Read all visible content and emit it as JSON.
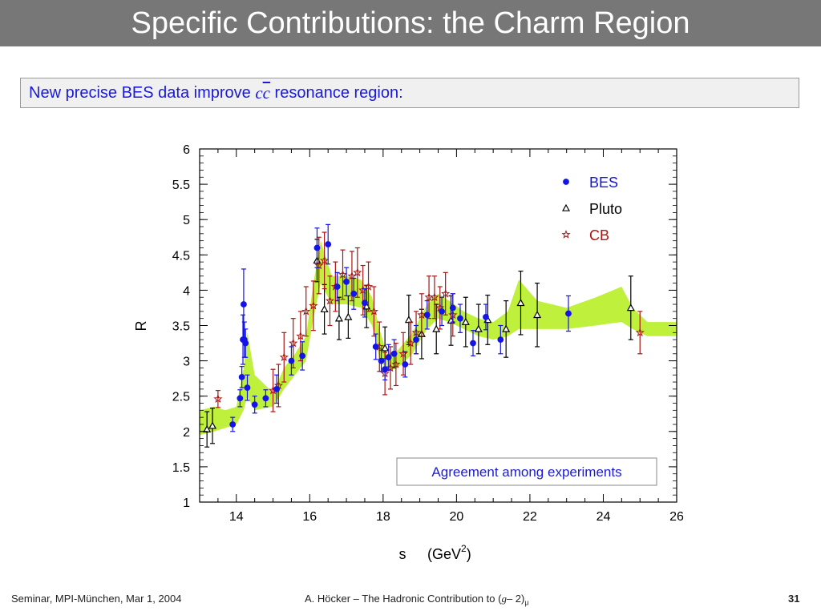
{
  "slide": {
    "title": "Specific Contributions: the Charm Region",
    "subtitle_pre": "New precise BES data improve ",
    "subtitle_c1": "c",
    "subtitle_c2": "c",
    "subtitle_post": " resonance region:",
    "footer_left": "Seminar, MPI-München, Mar 1, 2004",
    "footer_center_pre": "A. Höcker – The Hadronic Contribution to (",
    "footer_center_g": "g",
    "footer_center_mid": "– 2)",
    "footer_center_sub": "μ",
    "page_number": "31"
  },
  "chart_data": {
    "type": "scatter",
    "xlabel": "s",
    "xlabel_unit_pre": "(GeV",
    "xlabel_unit_sup": "2",
    "xlabel_unit_post": ")",
    "ylabel": "R",
    "xlim": [
      13,
      26
    ],
    "ylim": [
      1,
      6
    ],
    "x_ticks": [
      "14",
      "16",
      "18",
      "20",
      "22",
      "24",
      "26"
    ],
    "y_ticks": [
      "1",
      "1.5",
      "2",
      "2.5",
      "3",
      "3.5",
      "4",
      "4.5",
      "5",
      "5.5",
      "6"
    ],
    "annotation": "Agreement among experiments",
    "band_color": "#bff03c",
    "band": {
      "x": [
        13.0,
        13.4,
        13.7,
        14.0,
        14.2,
        14.3,
        14.5,
        15.0,
        15.3,
        15.6,
        15.9,
        16.1,
        16.3,
        16.6,
        17.0,
        17.4,
        17.7,
        17.9,
        18.1,
        18.4,
        18.8,
        19.2,
        19.5,
        19.8,
        20.2,
        20.6,
        21.0,
        21.4,
        21.7,
        22.2,
        23.0,
        23.8,
        24.5,
        24.8,
        25.2,
        26.0
      ],
      "lower": [
        1.95,
        2.0,
        2.05,
        2.1,
        2.3,
        2.5,
        2.3,
        2.35,
        2.6,
        2.8,
        3.0,
        3.6,
        4.1,
        3.8,
        3.8,
        3.75,
        3.5,
        3.05,
        2.85,
        2.9,
        3.1,
        3.45,
        3.6,
        3.55,
        3.45,
        3.35,
        3.3,
        3.35,
        3.45,
        3.45,
        3.45,
        3.5,
        3.55,
        3.45,
        3.35,
        3.35
      ],
      "upper": [
        2.3,
        2.35,
        2.3,
        2.35,
        2.9,
        3.4,
        2.8,
        2.55,
        2.9,
        3.1,
        3.35,
        4.1,
        4.7,
        4.2,
        4.2,
        4.15,
        3.9,
        3.45,
        3.1,
        3.15,
        3.4,
        3.8,
        3.95,
        3.85,
        3.7,
        3.6,
        3.55,
        3.7,
        4.15,
        3.85,
        3.75,
        3.9,
        4.05,
        3.75,
        3.55,
        3.55
      ]
    },
    "series": [
      {
        "name": "BES",
        "marker": "circle",
        "color": "#1414e6",
        "points": [
          [
            13.9,
            2.1,
            0.1
          ],
          [
            14.1,
            2.47,
            0.12
          ],
          [
            14.15,
            2.77,
            0.15
          ],
          [
            14.18,
            3.3,
            0.35
          ],
          [
            14.2,
            3.8,
            0.5
          ],
          [
            14.22,
            3.3,
            0.25
          ],
          [
            14.25,
            3.25,
            0.2
          ],
          [
            14.3,
            2.62,
            0.18
          ],
          [
            14.5,
            2.38,
            0.12
          ],
          [
            14.8,
            2.47,
            0.12
          ],
          [
            15.1,
            2.6,
            0.2
          ],
          [
            15.5,
            3.0,
            0.2
          ],
          [
            15.8,
            3.07,
            0.2
          ],
          [
            16.2,
            4.6,
            0.28
          ],
          [
            16.5,
            4.65,
            0.28
          ],
          [
            16.75,
            4.05,
            0.2
          ],
          [
            17.0,
            4.12,
            0.2
          ],
          [
            17.2,
            3.95,
            0.22
          ],
          [
            17.5,
            3.82,
            0.2
          ],
          [
            17.8,
            3.2,
            0.18
          ],
          [
            17.95,
            3.0,
            0.15
          ],
          [
            18.05,
            2.88,
            0.15
          ],
          [
            18.15,
            3.05,
            0.18
          ],
          [
            18.3,
            3.1,
            0.2
          ],
          [
            18.6,
            2.95,
            0.18
          ],
          [
            18.9,
            3.3,
            0.2
          ],
          [
            19.2,
            3.65,
            0.2
          ],
          [
            19.6,
            3.7,
            0.2
          ],
          [
            19.9,
            3.75,
            0.2
          ],
          [
            20.1,
            3.6,
            0.2
          ],
          [
            20.45,
            3.25,
            0.18
          ],
          [
            20.8,
            3.62,
            0.18
          ],
          [
            21.2,
            3.3,
            0.2
          ],
          [
            23.05,
            3.67,
            0.25
          ]
        ]
      },
      {
        "name": "Pluto",
        "marker": "triangle",
        "color": "#000000",
        "points": [
          [
            13.2,
            2.03,
            0.25
          ],
          [
            13.35,
            2.08,
            0.25
          ],
          [
            16.2,
            4.42,
            0.3
          ],
          [
            16.4,
            3.73,
            0.35
          ],
          [
            16.8,
            3.6,
            0.3
          ],
          [
            17.05,
            3.62,
            0.3
          ],
          [
            17.55,
            3.77,
            0.3
          ],
          [
            18.05,
            3.18,
            0.3
          ],
          [
            18.7,
            3.58,
            0.35
          ],
          [
            19.05,
            3.38,
            0.35
          ],
          [
            19.45,
            3.45,
            0.35
          ],
          [
            19.85,
            3.57,
            0.35
          ],
          [
            20.25,
            3.55,
            0.35
          ],
          [
            20.6,
            3.45,
            0.35
          ],
          [
            20.85,
            3.58,
            0.35
          ],
          [
            21.35,
            3.45,
            0.4
          ],
          [
            21.75,
            3.82,
            0.45
          ],
          [
            22.2,
            3.65,
            0.45
          ],
          [
            24.75,
            3.75,
            0.45
          ]
        ]
      },
      {
        "name": "CB",
        "marker": "star",
        "color": "#aa1414",
        "points": [
          [
            13.5,
            2.46,
            0.12
          ],
          [
            15.0,
            2.58,
            0.3
          ],
          [
            15.15,
            2.65,
            0.3
          ],
          [
            15.3,
            3.05,
            0.35
          ],
          [
            15.55,
            3.25,
            0.35
          ],
          [
            15.75,
            3.35,
            0.35
          ],
          [
            15.9,
            3.7,
            0.35
          ],
          [
            16.1,
            3.78,
            0.35
          ],
          [
            16.25,
            4.35,
            0.4
          ],
          [
            16.4,
            4.42,
            0.4
          ],
          [
            16.55,
            3.85,
            0.35
          ],
          [
            16.7,
            4.05,
            0.35
          ],
          [
            16.9,
            4.22,
            0.35
          ],
          [
            17.15,
            4.2,
            0.35
          ],
          [
            17.3,
            4.25,
            0.35
          ],
          [
            17.45,
            4.0,
            0.35
          ],
          [
            17.6,
            4.05,
            0.35
          ],
          [
            17.75,
            3.7,
            0.35
          ],
          [
            17.9,
            3.2,
            0.35
          ],
          [
            18.05,
            2.82,
            0.3
          ],
          [
            18.2,
            2.9,
            0.3
          ],
          [
            18.35,
            2.95,
            0.3
          ],
          [
            18.55,
            3.1,
            0.3
          ],
          [
            18.75,
            3.25,
            0.3
          ],
          [
            18.9,
            3.4,
            0.3
          ],
          [
            19.05,
            3.65,
            0.3
          ],
          [
            19.25,
            3.9,
            0.3
          ],
          [
            19.4,
            3.9,
            0.3
          ],
          [
            19.55,
            3.75,
            0.3
          ],
          [
            19.7,
            3.95,
            0.3
          ],
          [
            19.9,
            3.65,
            0.3
          ],
          [
            25.0,
            3.4,
            0.3
          ]
        ]
      }
    ]
  }
}
